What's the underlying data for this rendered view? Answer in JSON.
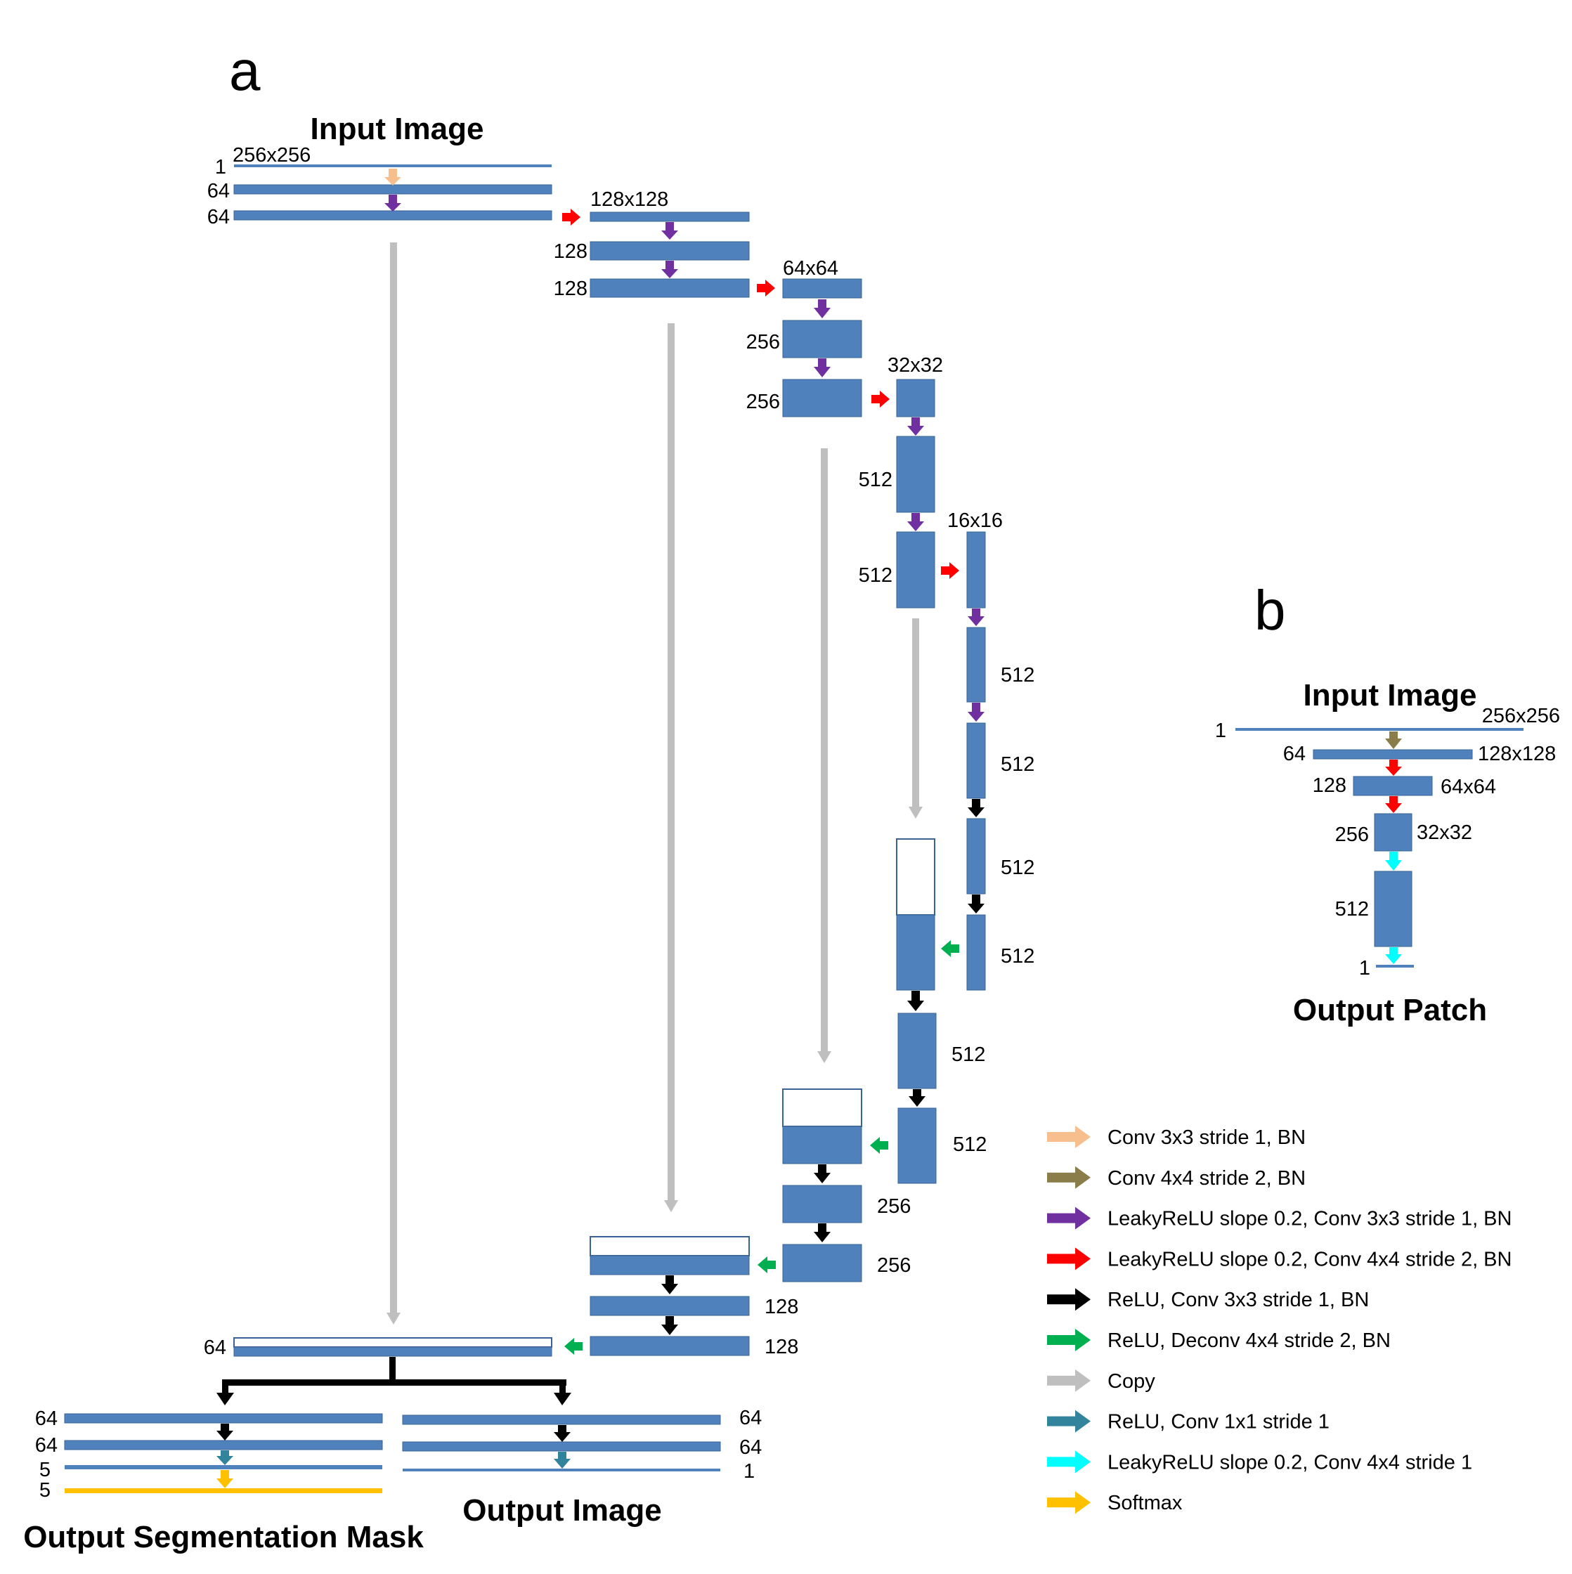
{
  "colors": {
    "block": "#4f81bd",
    "block_edge": "#3a6395",
    "empty_edge": "#3a6395",
    "conv3x3_bn": "#f8bf8e",
    "conv4x4_s2_bn": "#8b7d4a",
    "lrelu_conv3x3": "#7030a0",
    "lrelu_conv4x4_s2": "#ff0000",
    "relu_conv3x3": "#000000",
    "relu_deconv": "#00b050",
    "copy": "#bfbfbf",
    "relu_conv1x1": "#31849b",
    "lrelu_conv4x4_s1": "#00ffff",
    "softmax": "#ffc000"
  },
  "panel_a": {
    "letter": "a",
    "title_input": "Input Image",
    "title_output_image": "Output Image",
    "title_output_mask": "Output Segmentation Mask",
    "sizes": [
      "256x256",
      "128x128",
      "64x64",
      "32x32",
      "16x16"
    ],
    "enc1": [
      "1",
      "64",
      "64"
    ],
    "enc2": [
      "128",
      "128"
    ],
    "enc3": [
      "256",
      "256"
    ],
    "enc4": [
      "512",
      "512"
    ],
    "bottleneck": [
      "512",
      "512",
      "512",
      "512"
    ],
    "dec4": [
      "512",
      "512"
    ],
    "dec3": [
      "256",
      "256"
    ],
    "dec2": [
      "128",
      "128"
    ],
    "dec1": [
      "64"
    ],
    "seg_head": [
      "64",
      "64",
      "5",
      "5"
    ],
    "img_head": [
      "64",
      "64",
      "1"
    ]
  },
  "panel_b": {
    "letter": "b",
    "title_input": "Input Image",
    "title_output": "Output Patch",
    "channels": [
      "1",
      "64",
      "128",
      "256",
      "512",
      "1"
    ],
    "sizes": [
      "256x256",
      "128x128",
      "64x64",
      "32x32"
    ]
  },
  "legend": [
    {
      "label": "Conv 3x3 stride 1, BN",
      "color": "#f8bf8e"
    },
    {
      "label": "Conv 4x4 stride 2, BN",
      "color": "#8b7d4a"
    },
    {
      "label": "LeakyReLU slope 0.2, Conv 3x3 stride 1, BN",
      "color": "#7030a0"
    },
    {
      "label": "LeakyReLU slope 0.2, Conv 4x4 stride 2, BN",
      "color": "#ff0000"
    },
    {
      "label": "ReLU, Conv 3x3 stride 1, BN",
      "color": "#000000"
    },
    {
      "label": "ReLU, Deconv 4x4 stride 2, BN",
      "color": "#00b050"
    },
    {
      "label": "Copy",
      "color": "#bfbfbf"
    },
    {
      "label": "ReLU, Conv 1x1 stride 1",
      "color": "#31849b"
    },
    {
      "label": "LeakyReLU slope 0.2, Conv 4x4 stride 1",
      "color": "#00ffff"
    },
    {
      "label": "Softmax",
      "color": "#ffc000"
    }
  ]
}
